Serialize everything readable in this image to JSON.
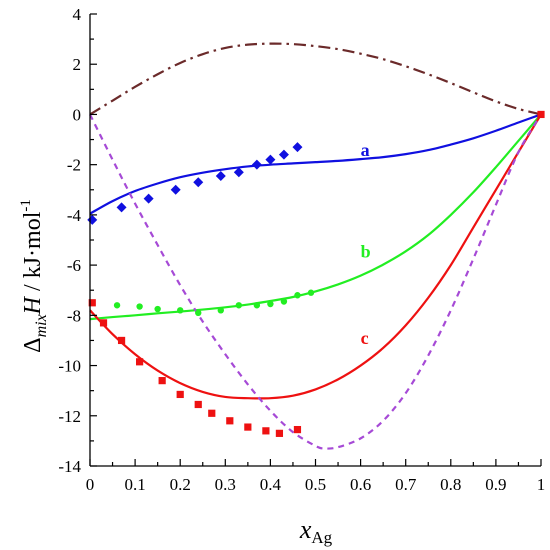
{
  "chart_data": {
    "type": "line",
    "xlabel": {
      "main": "x",
      "sub": "Ag"
    },
    "ylabel": {
      "delta": "Δ",
      "sub": "mix",
      "main": "H",
      "unit": " / kJ·mol",
      "sup": "-1"
    },
    "xlim": [
      0,
      1
    ],
    "ylim": [
      -14,
      4
    ],
    "xticks": [
      0,
      0.1,
      0.2,
      0.3,
      0.4,
      0.5,
      0.6,
      0.7,
      0.8,
      0.9,
      1
    ],
    "xtick_labels": [
      "0",
      "0.1",
      "0.2",
      "0.3",
      "0.4",
      "0.5",
      "0.6",
      "0.7",
      "0.8",
      "0.9",
      "1"
    ],
    "yticks": [
      -14,
      -12,
      -10,
      -8,
      -6,
      -4,
      -2,
      0,
      2,
      4
    ],
    "ytick_labels": [
      "-14",
      "-12",
      "-10",
      "-8",
      "-6",
      "-4",
      "-2",
      "0",
      "2",
      "4"
    ],
    "grid": false,
    "colors": {
      "a": "#1010e0",
      "b": "#22ee22",
      "c": "#ee1111",
      "dashdot": "#6b2a2a",
      "dashed": "#a64ad6",
      "endpoint": "#ee1111"
    },
    "lines": [
      {
        "name": "a",
        "style": "solid",
        "color": "#1010e0",
        "x": [
          0,
          0.05,
          0.1,
          0.15,
          0.2,
          0.25,
          0.3,
          0.35,
          0.4,
          0.45,
          0.5,
          0.55,
          0.6,
          0.65,
          0.7,
          0.75,
          0.8,
          0.85,
          0.9,
          0.95,
          1
        ],
        "y": [
          -3.95,
          -3.45,
          -3.05,
          -2.75,
          -2.5,
          -2.32,
          -2.18,
          -2.07,
          -2.0,
          -1.95,
          -1.9,
          -1.85,
          -1.78,
          -1.7,
          -1.58,
          -1.42,
          -1.2,
          -0.95,
          -0.65,
          -0.32,
          0
        ]
      },
      {
        "name": "b",
        "style": "solid",
        "color": "#22ee22",
        "x": [
          0,
          0.05,
          0.1,
          0.15,
          0.2,
          0.25,
          0.3,
          0.35,
          0.4,
          0.45,
          0.5,
          0.55,
          0.6,
          0.65,
          0.7,
          0.75,
          0.8,
          0.85,
          0.9,
          0.95,
          1
        ],
        "y": [
          -8.15,
          -8.07,
          -8.0,
          -7.92,
          -7.85,
          -7.77,
          -7.68,
          -7.57,
          -7.43,
          -7.27,
          -7.05,
          -6.77,
          -6.42,
          -5.98,
          -5.45,
          -4.8,
          -4.0,
          -3.1,
          -2.1,
          -1.05,
          0
        ]
      },
      {
        "name": "c",
        "style": "solid",
        "color": "#ee1111",
        "x": [
          0,
          0.05,
          0.1,
          0.15,
          0.2,
          0.25,
          0.3,
          0.35,
          0.4,
          0.45,
          0.5,
          0.55,
          0.6,
          0.65,
          0.7,
          0.75,
          0.8,
          0.85,
          0.9,
          0.95,
          1
        ],
        "y": [
          -7.8,
          -8.75,
          -9.55,
          -10.2,
          -10.7,
          -11.05,
          -11.25,
          -11.3,
          -11.3,
          -11.2,
          -10.95,
          -10.55,
          -10.0,
          -9.3,
          -8.4,
          -7.3,
          -6.0,
          -4.5,
          -3.0,
          -1.5,
          0
        ]
      },
      {
        "name": "",
        "style": "dashdot",
        "color": "#6b2a2a",
        "x": [
          0,
          0.05,
          0.1,
          0.15,
          0.2,
          0.25,
          0.3,
          0.35,
          0.4,
          0.45,
          0.5,
          0.55,
          0.6,
          0.65,
          0.7,
          0.75,
          0.8,
          0.85,
          0.9,
          0.95,
          1
        ],
        "y": [
          0,
          0.55,
          1.1,
          1.6,
          2.05,
          2.4,
          2.65,
          2.78,
          2.82,
          2.8,
          2.72,
          2.6,
          2.42,
          2.2,
          1.92,
          1.6,
          1.25,
          0.88,
          0.52,
          0.22,
          0
        ]
      },
      {
        "name": "",
        "style": "dashed",
        "color": "#a64ad6",
        "x": [
          0,
          0.05,
          0.1,
          0.15,
          0.2,
          0.25,
          0.3,
          0.35,
          0.4,
          0.45,
          0.5,
          0.52,
          0.55,
          0.6,
          0.65,
          0.7,
          0.75,
          0.8,
          0.85,
          0.9,
          0.95,
          1
        ],
        "y": [
          0,
          -1.8,
          -3.55,
          -5.2,
          -6.8,
          -8.25,
          -9.55,
          -10.75,
          -11.8,
          -12.65,
          -13.2,
          -13.3,
          -13.25,
          -12.9,
          -12.2,
          -11.1,
          -9.6,
          -7.8,
          -5.75,
          -3.6,
          -1.5,
          0
        ]
      }
    ],
    "scatter": [
      {
        "name": "a",
        "marker": "diamond",
        "color": "#1010e0",
        "x": [
          0.005,
          0.07,
          0.13,
          0.19,
          0.24,
          0.29,
          0.33,
          0.37,
          0.4,
          0.43,
          0.46
        ],
        "y": [
          -4.2,
          -3.7,
          -3.35,
          -3.0,
          -2.7,
          -2.45,
          -2.3,
          -2.0,
          -1.8,
          -1.6,
          -1.3
        ]
      },
      {
        "name": "b",
        "marker": "circle",
        "color": "#22ee22",
        "x": [
          0.06,
          0.11,
          0.15,
          0.2,
          0.24,
          0.29,
          0.33,
          0.37,
          0.4,
          0.43,
          0.46,
          0.49
        ],
        "y": [
          -7.6,
          -7.65,
          -7.75,
          -7.8,
          -7.9,
          -7.8,
          -7.6,
          -7.6,
          -7.55,
          -7.45,
          -7.2,
          -7.1
        ]
      },
      {
        "name": "c",
        "marker": "square",
        "color": "#ee1111",
        "x": [
          0.005,
          0.03,
          0.07,
          0.11,
          0.16,
          0.2,
          0.24,
          0.27,
          0.31,
          0.35,
          0.39,
          0.42,
          0.46
        ],
        "y": [
          -7.5,
          -8.3,
          -9.0,
          -9.85,
          -10.6,
          -11.15,
          -11.55,
          -11.9,
          -12.2,
          -12.45,
          -12.6,
          -12.7,
          -12.55
        ]
      },
      {
        "name": "",
        "marker": "square",
        "color": "#ee1111",
        "x": [
          1.0
        ],
        "y": [
          0
        ]
      }
    ],
    "labels": [
      {
        "text": "a",
        "x": 0.6,
        "y": -1.65,
        "color": "#1010e0"
      },
      {
        "text": "b",
        "x": 0.6,
        "y": -5.7,
        "color": "#22ee22"
      },
      {
        "text": "c",
        "x": 0.6,
        "y": -9.15,
        "color": "#ee1111"
      }
    ]
  }
}
